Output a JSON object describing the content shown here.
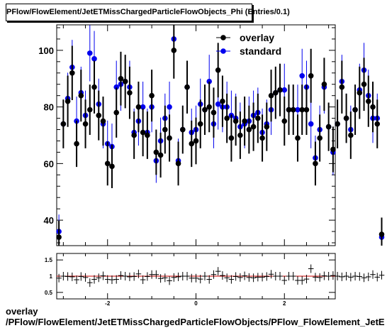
{
  "title": "PFlow/FlowElement/JetETMissChargedParticleFlowObjects_Phi (Entries/0.1)",
  "footer": {
    "line1": "overlay",
    "line2": "/PFlow/FlowElement/JetETMissChargedParticleFlowObjects/PFlow_FlowElement_JetE"
  },
  "colors": {
    "overlay": "#000000",
    "standard": "#0000ee",
    "ratio_line": "#cc0000"
  },
  "chart_data": [
    {
      "type": "scatter",
      "title": "PFlow/FlowElement/JetETMissChargedParticleFlowObjects_Phi (Entries/0.1)",
      "xlabel": "",
      "ylabel": "",
      "xlim": [
        -3.15,
        3.15
      ],
      "ylim": [
        31,
        109
      ],
      "yticks": [
        40,
        60,
        80,
        100
      ],
      "legend_position": "top-right",
      "bin_width": 0.1,
      "x_start": -3.1,
      "series": [
        {
          "name": "overlay",
          "marker": "circle",
          "values": [
            34,
            74,
            82,
            92,
            67,
            84,
            74,
            79,
            87,
            77,
            75,
            60,
            59,
            78,
            90,
            89,
            85,
            70,
            80,
            71,
            70,
            84,
            64,
            63,
            72,
            69,
            100,
            60,
            72,
            87,
            67,
            68,
            74,
            79,
            80,
            78,
            93,
            82,
            76,
            69,
            75,
            70,
            75,
            72,
            73,
            76,
            69,
            73,
            84,
            85,
            86,
            75,
            79,
            79,
            69,
            79,
            79,
            91,
            60,
            69,
            88,
            73,
            65,
            74,
            87,
            76,
            70,
            79,
            85,
            88,
            82,
            80,
            74,
            35
          ]
        },
        {
          "name": "standard",
          "marker": "circle",
          "values": [
            36,
            74,
            83,
            94,
            75,
            85,
            77,
            99,
            97,
            81,
            74,
            67,
            66,
            87,
            88,
            89,
            87,
            71,
            75,
            80,
            71,
            80,
            61,
            68,
            76,
            80,
            104,
            61,
            72,
            87,
            71,
            72,
            81,
            79,
            89,
            74,
            81,
            80,
            80,
            77,
            76,
            73,
            74,
            75,
            77,
            78,
            71,
            74,
            79,
            85,
            86,
            86,
            79,
            79,
            79,
            91,
            87,
            74,
            62,
            72,
            87,
            73,
            64,
            74,
            89,
            76,
            72,
            79,
            86,
            93,
            84,
            76,
            76,
            34
          ]
        }
      ]
    },
    {
      "type": "scatter",
      "title": "",
      "xlabel": "",
      "ylabel": "",
      "xlim": [
        -3.15,
        3.15
      ],
      "ylim": [
        0.3,
        1.7
      ],
      "yticks": [
        0.5,
        1,
        1.5
      ],
      "xticks": [
        -2,
        0,
        2
      ],
      "reference_line": 1,
      "series": [
        {
          "name": "overlay / standard",
          "marker": "cross",
          "values": [
            0.94,
            1.0,
            0.99,
            0.98,
            0.89,
            0.99,
            0.96,
            0.8,
            0.9,
            0.95,
            1.01,
            0.9,
            0.89,
            0.9,
            1.02,
            1.0,
            0.98,
            0.99,
            1.07,
            0.89,
            0.99,
            1.05,
            1.05,
            0.93,
            0.95,
            0.86,
            0.96,
            0.98,
            1.0,
            1.0,
            0.94,
            0.94,
            0.91,
            1.0,
            0.9,
            1.05,
            1.15,
            1.02,
            0.95,
            0.9,
            0.99,
            0.96,
            1.01,
            0.96,
            0.95,
            0.97,
            0.97,
            0.99,
            1.06,
            1.0,
            1.0,
            0.87,
            1.0,
            1.0,
            0.87,
            0.87,
            0.91,
            1.23,
            0.97,
            0.96,
            1.01,
            1.0,
            1.02,
            1.0,
            0.98,
            1.0,
            0.97,
            1.0,
            0.99,
            0.95,
            0.98,
            1.05,
            0.97,
            1.03
          ]
        }
      ]
    }
  ]
}
